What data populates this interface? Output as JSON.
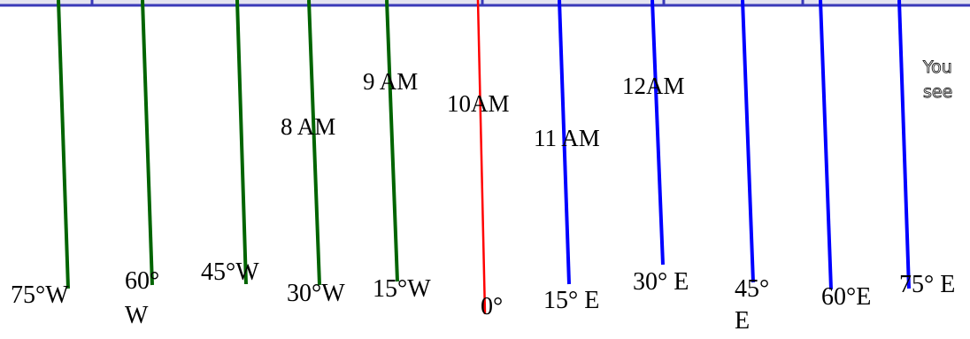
{
  "colors": {
    "west": "#006400",
    "prime": "#ff0000",
    "east": "#0000ff",
    "top_bar": "#3a3ab8"
  },
  "meridians": [
    {
      "name": "75W",
      "group": "west"
    },
    {
      "name": "60W",
      "group": "west"
    },
    {
      "name": "45W",
      "group": "west"
    },
    {
      "name": "30W",
      "group": "west"
    },
    {
      "name": "15W",
      "group": "west"
    },
    {
      "name": "0",
      "group": "prime"
    },
    {
      "name": "15E",
      "group": "east"
    },
    {
      "name": "30E",
      "group": "east"
    },
    {
      "name": "45E",
      "group": "east"
    },
    {
      "name": "60E",
      "group": "east"
    },
    {
      "name": "75E",
      "group": "east"
    }
  ],
  "longitude_labels": {
    "w75": "75°W",
    "w60_line1": "60°",
    "w60_line2": "W",
    "w45": "45°W",
    "w30": "30°W",
    "w15": "15°W",
    "zero": "0°",
    "e15": "15° E",
    "e30": "30° E",
    "e45_line1": "45°",
    "e45_line2": "E",
    "e60": "60°E",
    "e75": "75° E"
  },
  "time_labels": {
    "t8": "8 AM",
    "t9": "9 AM",
    "t10": "10AM",
    "t11": "11 AM",
    "t12": "12AM"
  },
  "note": {
    "line1": "You",
    "line2": "see"
  }
}
